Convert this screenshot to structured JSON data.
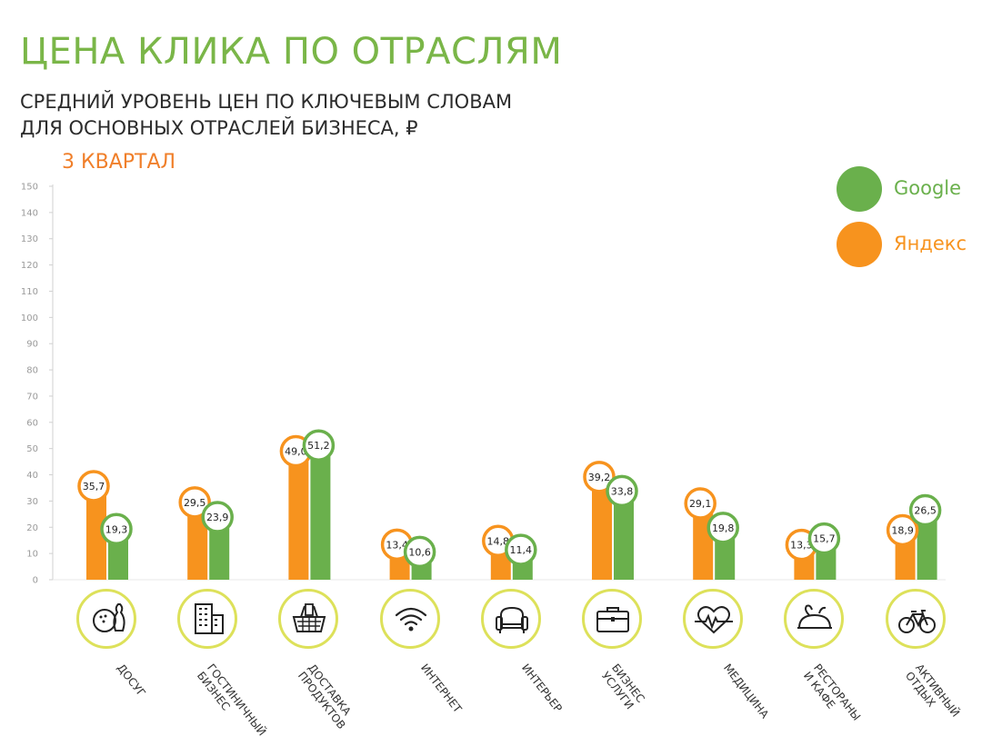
{
  "title": "ЦЕНА КЛИКА ПО ОТРАСЛЯМ",
  "subtitle": [
    "СРЕДНИЙ УРОВЕНЬ ЦЕН ПО КЛЮЧЕВЫМ СЛОВАМ",
    "ДЛЯ ОСНОВНЫХ ОТРАСЛЕЙ БИЗНЕСА, ₽"
  ],
  "period": "3 КВАРТАЛ",
  "legend": [
    {
      "name": "Google",
      "color": "#6ab04c"
    },
    {
      "name": "Яндекс",
      "color": "#f7931e"
    }
  ],
  "colors": {
    "yandex": "#f7931e",
    "google": "#6ab04c",
    "icon_ring": "#dde15a"
  },
  "chart_data": {
    "type": "bar",
    "ylim": [
      0,
      150
    ],
    "yticks": [
      0,
      10,
      20,
      30,
      40,
      50,
      60,
      70,
      80,
      90,
      100,
      110,
      120,
      130,
      140,
      150
    ],
    "categories": [
      {
        "label": [
          "ДОСУГ"
        ],
        "icon": "bowling-icon"
      },
      {
        "label": [
          "ГОСТИНИЧНЫЙ",
          "БИЗНЕС"
        ],
        "icon": "hotel-building-icon"
      },
      {
        "label": [
          "ДОСТАВКА",
          "ПРОДУКТОВ"
        ],
        "icon": "grocery-basket-icon"
      },
      {
        "label": [
          "ИНТЕРНЕТ"
        ],
        "icon": "wifi-icon"
      },
      {
        "label": [
          "ИНТЕРЬЕР"
        ],
        "icon": "armchair-icon"
      },
      {
        "label": [
          "БИЗНЕС",
          "УСЛУГИ"
        ],
        "icon": "briefcase-icon"
      },
      {
        "label": [
          "МЕДИЦИНА"
        ],
        "icon": "heartbeat-icon"
      },
      {
        "label": [
          "РЕСТОРАНЫ",
          "И КАФЕ"
        ],
        "icon": "roast-chicken-icon"
      },
      {
        "label": [
          "АКТИВНЫЙ",
          "ОТДЫХ"
        ],
        "icon": "bicycle-icon"
      }
    ],
    "series": [
      {
        "name": "Яндекс",
        "values": [
          35.7,
          29.5,
          49.0,
          13.4,
          14.8,
          39.2,
          29.1,
          13.3,
          18.9
        ],
        "labels": [
          "35,7",
          "29,5",
          "49,0",
          "13,4",
          "14,8",
          "39,2",
          "29,1",
          "13,3",
          "18,9"
        ]
      },
      {
        "name": "Google",
        "values": [
          19.3,
          23.9,
          51.2,
          10.6,
          11.4,
          33.8,
          19.8,
          15.7,
          26.5
        ],
        "labels": [
          "19,3",
          "23,9",
          "51,2",
          "10,6",
          "11,4",
          "33,8",
          "19,8",
          "15,7",
          "26,5"
        ]
      }
    ]
  }
}
